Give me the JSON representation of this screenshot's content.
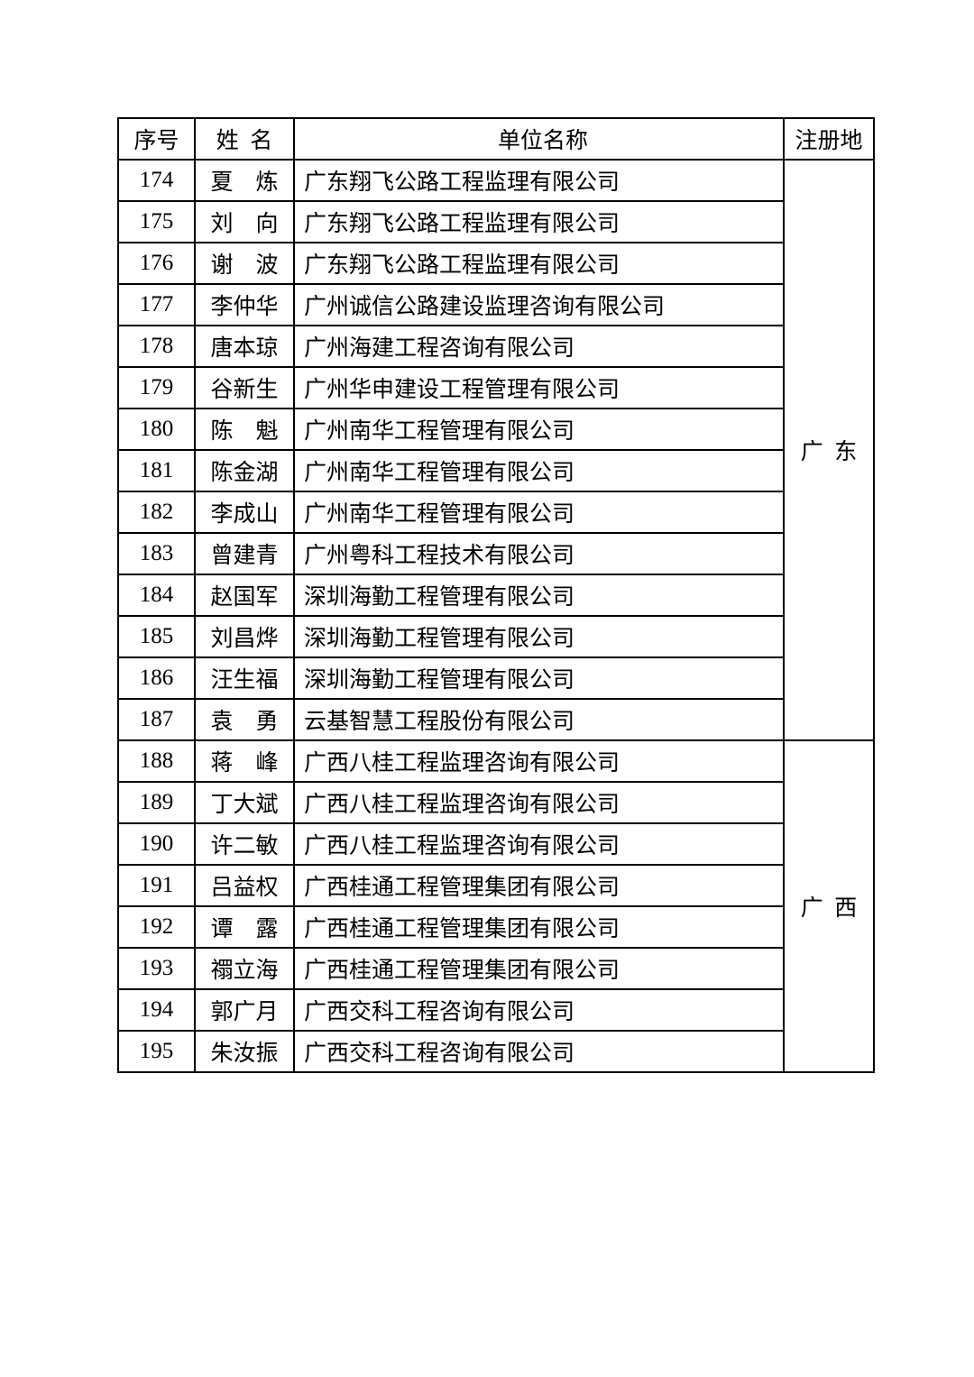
{
  "header": {
    "seq": "序号",
    "name_c1": "姓",
    "name_c2": "名",
    "unit": "单位名称",
    "reg": "注册地"
  },
  "regions": [
    {
      "label_c1": "广",
      "label_c2": "东",
      "start": 0,
      "span": 14
    },
    {
      "label_c1": "广",
      "label_c2": "西",
      "start": 14,
      "span": 8
    }
  ],
  "rows": [
    {
      "seq": "174",
      "name": [
        "夏",
        "炼"
      ],
      "unit": "广东翔飞公路工程监理有限公司"
    },
    {
      "seq": "175",
      "name": [
        "刘",
        "向"
      ],
      "unit": "广东翔飞公路工程监理有限公司"
    },
    {
      "seq": "176",
      "name": [
        "谢",
        "波"
      ],
      "unit": "广东翔飞公路工程监理有限公司"
    },
    {
      "seq": "177",
      "name": "李仲华",
      "unit": "广州诚信公路建设监理咨询有限公司"
    },
    {
      "seq": "178",
      "name": "唐本琼",
      "unit": "广州海建工程咨询有限公司"
    },
    {
      "seq": "179",
      "name": "谷新生",
      "unit": "广州华申建设工程管理有限公司"
    },
    {
      "seq": "180",
      "name": [
        "陈",
        "魁"
      ],
      "unit": "广州南华工程管理有限公司"
    },
    {
      "seq": "181",
      "name": "陈金湖",
      "unit": "广州南华工程管理有限公司"
    },
    {
      "seq": "182",
      "name": "李成山",
      "unit": "广州南华工程管理有限公司"
    },
    {
      "seq": "183",
      "name": "曾建青",
      "unit": "广州粤科工程技术有限公司"
    },
    {
      "seq": "184",
      "name": "赵国军",
      "unit": "深圳海勤工程管理有限公司"
    },
    {
      "seq": "185",
      "name": "刘昌烨",
      "unit": "深圳海勤工程管理有限公司"
    },
    {
      "seq": "186",
      "name": "汪生福",
      "unit": "深圳海勤工程管理有限公司"
    },
    {
      "seq": "187",
      "name": [
        "袁",
        "勇"
      ],
      "unit": "云基智慧工程股份有限公司"
    },
    {
      "seq": "188",
      "name": [
        "蒋",
        "峰"
      ],
      "unit": "广西八桂工程监理咨询有限公司"
    },
    {
      "seq": "189",
      "name": "丁大斌",
      "unit": "广西八桂工程监理咨询有限公司"
    },
    {
      "seq": "190",
      "name": "许二敏",
      "unit": "广西八桂工程监理咨询有限公司"
    },
    {
      "seq": "191",
      "name": "吕益权",
      "unit": "广西桂通工程管理集团有限公司"
    },
    {
      "seq": "192",
      "name": [
        "谭",
        "露"
      ],
      "unit": "广西桂通工程管理集团有限公司"
    },
    {
      "seq": "193",
      "name": "禤立海",
      "unit": "广西桂通工程管理集团有限公司"
    },
    {
      "seq": "194",
      "name": "郭广月",
      "unit": "广西交科工程咨询有限公司"
    },
    {
      "seq": "195",
      "name": "朱汝振",
      "unit": "广西交科工程咨询有限公司"
    }
  ]
}
